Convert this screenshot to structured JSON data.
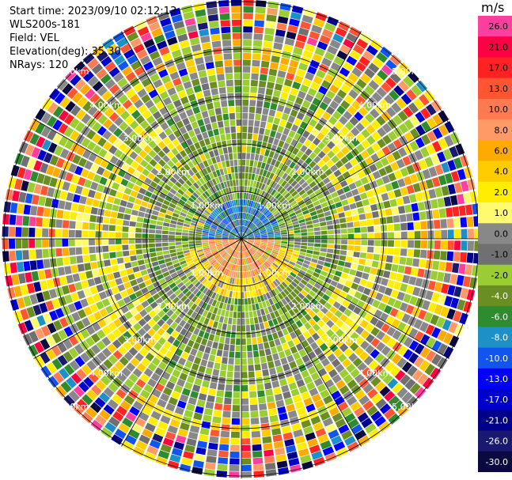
{
  "header": {
    "start_time": "Start time: 2023/09/10 02:12:13",
    "instrument": "WLS200s-181",
    "field": "Field: VEL",
    "elevation": "Elevation(deg): 35.30",
    "nrays": "NRays: 120"
  },
  "colorbar": {
    "unit": "m/s",
    "ticks": [
      "26.0",
      "21.0",
      "17.0",
      "13.0",
      "10.0",
      "8.0",
      "6.0",
      "4.0",
      "2.0",
      "1.0",
      "0.0",
      "-1.0",
      "-2.0",
      "-4.0",
      "-6.0",
      "-8.0",
      "-10.0",
      "-13.0",
      "-17.0",
      "-21.0",
      "-26.0",
      "-30.0"
    ],
    "colors": [
      "#ff3fa0",
      "#ff0044",
      "#ff2222",
      "#ff5533",
      "#ff7a50",
      "#ff9966",
      "#ffaa00",
      "#ffcc00",
      "#ffee00",
      "#fffb70",
      "#888888",
      "#707070",
      "#9acd32",
      "#6b8e23",
      "#2e8b2e",
      "#1e90c8",
      "#1155ee",
      "#0000ff",
      "#0000cc",
      "#00008b",
      "#191970",
      "#0a0a40"
    ]
  },
  "chart_data": {
    "type": "polar-radar-ppi",
    "field": "VEL",
    "unit": "m/s",
    "nrays": 120,
    "range_rings_km": [
      1.0,
      2.0,
      3.0,
      4.0,
      5.0
    ],
    "ring_labels": [
      "1.00km",
      "2.00km",
      "3.00km",
      "4.00km",
      "5.00km"
    ],
    "colorbar_range": [
      -30.0,
      26.0
    ]
  }
}
